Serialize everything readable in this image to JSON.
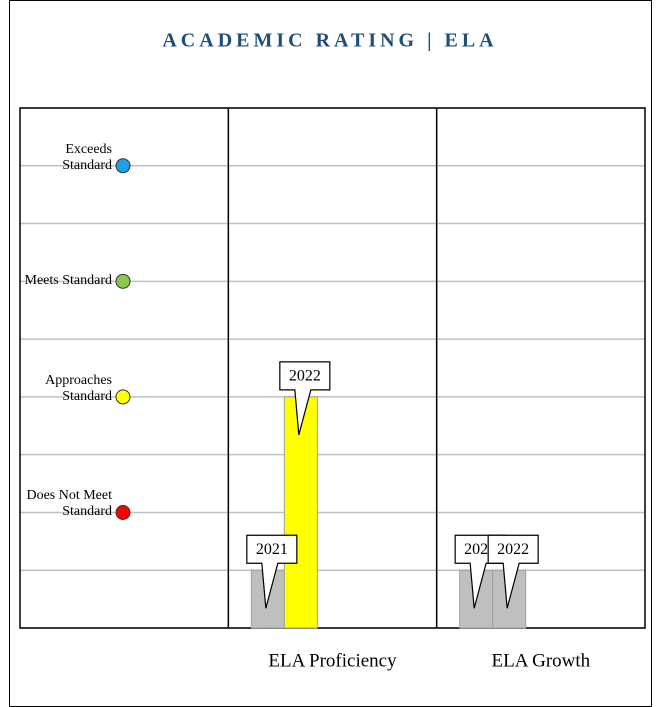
{
  "chart_data": {
    "type": "bar",
    "title": "ACADEMIC RATING | ELA",
    "categories": [
      "ELA Proficiency",
      "ELA Growth"
    ],
    "series": [
      {
        "name": "2021",
        "colors": [
          "#bfbfbf",
          "#bfbfbf"
        ],
        "values": [
          1,
          1
        ]
      },
      {
        "name": "2022",
        "colors": [
          "#ffff00",
          "#bfbfbf"
        ],
        "values": [
          4,
          1
        ]
      }
    ],
    "levels": [
      {
        "label": "Exceeds Standard",
        "value": 8,
        "color": "#1ea0e6"
      },
      {
        "label": "Meets Standard",
        "value": 6,
        "color": "#8cc84b"
      },
      {
        "label": "Approaches Standard",
        "value": 4,
        "color": "#ffff00"
      },
      {
        "label": "Does Not Meet Standard",
        "value": 2,
        "color": "#ff0000"
      }
    ],
    "ylim": [
      0,
      9
    ],
    "yticks": [
      0,
      1,
      2,
      3,
      4,
      5,
      6,
      7,
      8,
      9
    ],
    "grid": true
  }
}
